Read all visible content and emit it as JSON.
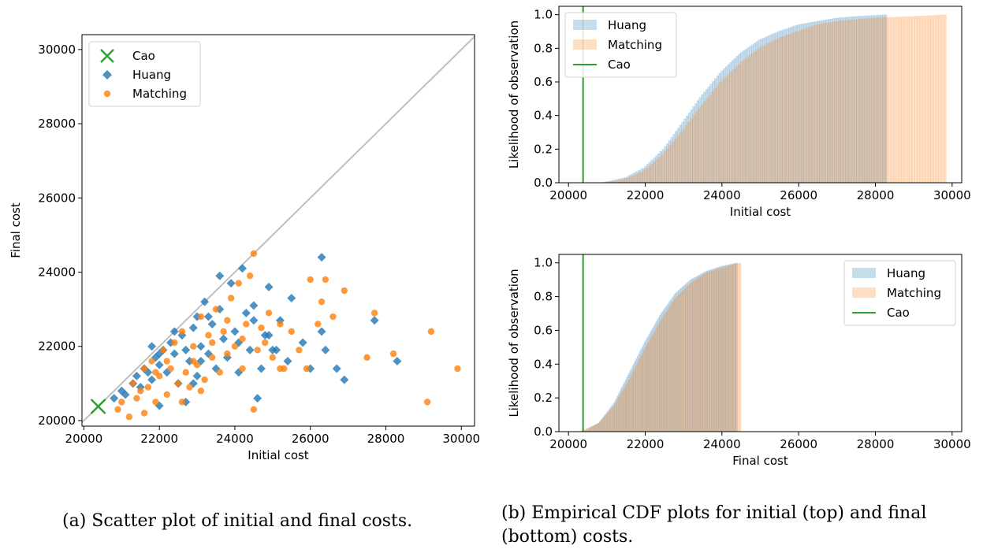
{
  "colors": {
    "cao": "#2ca02c",
    "huang": "#1f77b4",
    "matching": "#ff7f0e",
    "diagonal": "#bfbfbf"
  },
  "captions": {
    "a": "(a) Scatter plot of initial and final costs.",
    "b": "(b) Empirical CDF plots for initial (top) and final (bottom) costs."
  },
  "chart_data": [
    {
      "type": "scatter",
      "title": "",
      "xlabel": "Initial cost",
      "ylabel": "Final cost",
      "xlim": [
        19950,
        30350
      ],
      "ylim": [
        19850,
        30400
      ],
      "xticks": [
        20000,
        22000,
        24000,
        26000,
        28000,
        30000
      ],
      "yticks": [
        20000,
        22000,
        24000,
        26000,
        28000,
        30000
      ],
      "legend": "top-left",
      "grid": false,
      "reference_line": "y = x",
      "series": [
        {
          "name": "Cao",
          "marker": "x",
          "points": [
            [
              20380,
              20380
            ]
          ]
        },
        {
          "name": "Huang",
          "marker": "diamond",
          "points": [
            [
              20800,
              20600
            ],
            [
              21000,
              20800
            ],
            [
              21100,
              20700
            ],
            [
              21300,
              21000
            ],
            [
              21400,
              21200
            ],
            [
              21500,
              20900
            ],
            [
              21600,
              21400
            ],
            [
              21700,
              21300
            ],
            [
              21800,
              21100
            ],
            [
              21900,
              21700
            ],
            [
              22000,
              21500
            ],
            [
              22000,
              20400
            ],
            [
              22100,
              21900
            ],
            [
              22200,
              21300
            ],
            [
              22300,
              22100
            ],
            [
              22400,
              21800
            ],
            [
              22500,
              21000
            ],
            [
              22600,
              22300
            ],
            [
              22700,
              20500
            ],
            [
              22700,
              21900
            ],
            [
              22800,
              21600
            ],
            [
              22900,
              22500
            ],
            [
              23000,
              21200
            ],
            [
              23000,
              22800
            ],
            [
              23100,
              22000
            ],
            [
              23200,
              23200
            ],
            [
              23300,
              21800
            ],
            [
              23400,
              22600
            ],
            [
              23500,
              21400
            ],
            [
              23600,
              23000
            ],
            [
              23700,
              22200
            ],
            [
              23800,
              21700
            ],
            [
              23900,
              23700
            ],
            [
              24000,
              22400
            ],
            [
              24100,
              21300
            ],
            [
              24200,
              24100
            ],
            [
              24300,
              22900
            ],
            [
              24400,
              21900
            ],
            [
              24500,
              22700
            ],
            [
              24500,
              23100
            ],
            [
              24600,
              20600
            ],
            [
              24700,
              21400
            ],
            [
              24800,
              22300
            ],
            [
              24900,
              23600
            ],
            [
              25000,
              21900
            ],
            [
              25200,
              22700
            ],
            [
              25400,
              21600
            ],
            [
              25500,
              23300
            ],
            [
              25800,
              22100
            ],
            [
              26000,
              21400
            ],
            [
              26300,
              24400
            ],
            [
              26400,
              21900
            ],
            [
              26700,
              21400
            ],
            [
              26900,
              21100
            ],
            [
              27700,
              22700
            ],
            [
              28300,
              21600
            ],
            [
              23100,
              21600
            ],
            [
              22400,
              22400
            ],
            [
              21800,
              22000
            ],
            [
              23600,
              23900
            ],
            [
              24100,
              22100
            ],
            [
              22900,
              21000
            ],
            [
              23300,
              22800
            ],
            [
              22000,
              21800
            ],
            [
              24900,
              22300
            ],
            [
              25100,
              21900
            ],
            [
              26300,
              22400
            ]
          ]
        },
        {
          "name": "Matching",
          "marker": "circle",
          "points": [
            [
              20900,
              20300
            ],
            [
              21000,
              20500
            ],
            [
              21200,
              20100
            ],
            [
              21300,
              21000
            ],
            [
              21400,
              20600
            ],
            [
              21500,
              20800
            ],
            [
              21600,
              21400
            ],
            [
              21700,
              20900
            ],
            [
              21800,
              21600
            ],
            [
              21900,
              20500
            ],
            [
              22000,
              21200
            ],
            [
              22100,
              21900
            ],
            [
              22200,
              20700
            ],
            [
              22300,
              21400
            ],
            [
              22400,
              22100
            ],
            [
              22500,
              21000
            ],
            [
              22600,
              22400
            ],
            [
              22700,
              21300
            ],
            [
              22800,
              20900
            ],
            [
              22900,
              22000
            ],
            [
              23000,
              21500
            ],
            [
              23100,
              22800
            ],
            [
              23200,
              21100
            ],
            [
              23300,
              22300
            ],
            [
              23400,
              21700
            ],
            [
              23500,
              23000
            ],
            [
              23600,
              21300
            ],
            [
              23700,
              22400
            ],
            [
              23800,
              21800
            ],
            [
              23900,
              23300
            ],
            [
              24000,
              22000
            ],
            [
              24100,
              23700
            ],
            [
              24200,
              21400
            ],
            [
              24300,
              22600
            ],
            [
              24400,
              23900
            ],
            [
              24500,
              24500
            ],
            [
              24500,
              20300
            ],
            [
              24600,
              21900
            ],
            [
              24700,
              22500
            ],
            [
              24900,
              22900
            ],
            [
              25000,
              21700
            ],
            [
              25200,
              22600
            ],
            [
              25300,
              21400
            ],
            [
              25500,
              22400
            ],
            [
              25700,
              21900
            ],
            [
              25900,
              21400
            ],
            [
              26000,
              23800
            ],
            [
              26200,
              22600
            ],
            [
              26300,
              23200
            ],
            [
              26400,
              23800
            ],
            [
              26600,
              22800
            ],
            [
              26900,
              23500
            ],
            [
              27500,
              21700
            ],
            [
              27700,
              22900
            ],
            [
              28200,
              21800
            ],
            [
              29100,
              20500
            ],
            [
              29200,
              22400
            ],
            [
              29900,
              21400
            ],
            [
              22200,
              21600
            ],
            [
              23800,
              22700
            ],
            [
              22600,
              20500
            ],
            [
              23400,
              22100
            ],
            [
              24200,
              22200
            ],
            [
              21900,
              21300
            ],
            [
              25200,
              21400
            ],
            [
              22900,
              21600
            ],
            [
              24800,
              22100
            ],
            [
              23100,
              20800
            ],
            [
              21600,
              20200
            ]
          ]
        }
      ]
    },
    {
      "type": "area",
      "title": "",
      "xlabel": "Initial cost",
      "ylabel": "Likelihood of observation",
      "xlim": [
        19750,
        30250
      ],
      "ylim": [
        0,
        1.05
      ],
      "xticks": [
        20000,
        22000,
        24000,
        26000,
        28000,
        30000
      ],
      "yticks": [
        0.0,
        0.2,
        0.4,
        0.6,
        0.8,
        1.0
      ],
      "legend": "top-left",
      "series": [
        {
          "name": "Huang",
          "cdf": [
            [
              20900,
              0
            ],
            [
              21500,
              0.03
            ],
            [
              22000,
              0.09
            ],
            [
              22500,
              0.2
            ],
            [
              23000,
              0.36
            ],
            [
              23500,
              0.52
            ],
            [
              24000,
              0.66
            ],
            [
              24500,
              0.77
            ],
            [
              25000,
              0.85
            ],
            [
              25500,
              0.9
            ],
            [
              26000,
              0.94
            ],
            [
              26500,
              0.96
            ],
            [
              27000,
              0.98
            ],
            [
              27500,
              0.99
            ],
            [
              28300,
              1.0
            ]
          ]
        },
        {
          "name": "Matching",
          "cdf": [
            [
              20900,
              0
            ],
            [
              21500,
              0.02
            ],
            [
              22000,
              0.07
            ],
            [
              22500,
              0.17
            ],
            [
              23000,
              0.31
            ],
            [
              23500,
              0.46
            ],
            [
              24000,
              0.6
            ],
            [
              24500,
              0.71
            ],
            [
              25000,
              0.8
            ],
            [
              25500,
              0.86
            ],
            [
              26000,
              0.9
            ],
            [
              26500,
              0.94
            ],
            [
              27000,
              0.96
            ],
            [
              27500,
              0.97
            ],
            [
              28000,
              0.98
            ],
            [
              29000,
              0.99
            ],
            [
              29850,
              1.0
            ]
          ]
        },
        {
          "name": "Cao",
          "vline": 20380
        }
      ]
    },
    {
      "type": "area",
      "title": "",
      "xlabel": "Final cost",
      "ylabel": "Likelihood of observation",
      "xlim": [
        19750,
        30250
      ],
      "ylim": [
        0,
        1.05
      ],
      "xticks": [
        20000,
        22000,
        24000,
        26000,
        28000,
        30000
      ],
      "yticks": [
        0.0,
        0.2,
        0.4,
        0.6,
        0.8,
        1.0
      ],
      "legend": "top-right",
      "series": [
        {
          "name": "Huang",
          "cdf": [
            [
              20400,
              0
            ],
            [
              20800,
              0.05
            ],
            [
              21200,
              0.17
            ],
            [
              21600,
              0.35
            ],
            [
              22000,
              0.53
            ],
            [
              22400,
              0.69
            ],
            [
              22800,
              0.82
            ],
            [
              23200,
              0.9
            ],
            [
              23600,
              0.95
            ],
            [
              24000,
              0.98
            ],
            [
              24400,
              1.0
            ]
          ]
        },
        {
          "name": "Matching",
          "cdf": [
            [
              20300,
              0
            ],
            [
              20800,
              0.05
            ],
            [
              21200,
              0.15
            ],
            [
              21600,
              0.31
            ],
            [
              22000,
              0.49
            ],
            [
              22400,
              0.65
            ],
            [
              22800,
              0.79
            ],
            [
              23200,
              0.88
            ],
            [
              23600,
              0.94
            ],
            [
              24000,
              0.97
            ],
            [
              24500,
              1.0
            ]
          ]
        },
        {
          "name": "Cao",
          "vline": 20380
        }
      ]
    }
  ]
}
